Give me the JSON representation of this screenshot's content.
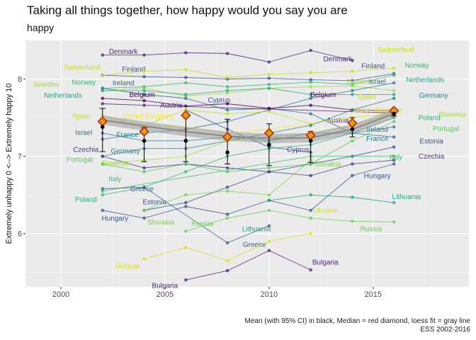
{
  "chart_data": {
    "type": "line",
    "title": "Taking all things together, how happy would you say you are",
    "subtitle": "happy",
    "xlabel": "",
    "ylabel": "Extremely unhappy 0 <--> Extremely happy 10",
    "xlim": [
      1998.3,
      2019.6
    ],
    "ylim": [
      5.31,
      8.5
    ],
    "xticks": [
      2000,
      2005,
      2010,
      2015
    ],
    "yticks": [
      6,
      7,
      8
    ],
    "caption_line1": "Mean (with 95% CI) in black, Median = red diamond, loess fit = gray line",
    "caption_line2": "ESS 2002-2016",
    "grid": true,
    "legend": "none",
    "series": [
      {
        "name": "Denmark",
        "color": "#472d7b",
        "x": [
          2002,
          2004,
          2006,
          2008,
          2010,
          2012,
          2014
        ],
        "y": [
          8.31,
          8.31,
          8.34,
          8.33,
          8.22,
          8.37,
          8.24
        ],
        "labels": [
          {
            "x": 2003,
            "y": 8.36,
            "ha": "middle"
          },
          {
            "x": 2013.3,
            "y": 8.26,
            "ha": "middle"
          }
        ]
      },
      {
        "name": "Finland",
        "color": "#3b528b",
        "x": [
          2002,
          2004,
          2006,
          2008,
          2010,
          2012,
          2014,
          2016
        ],
        "y": [
          8.05,
          8.03,
          8.02,
          8.0,
          8.01,
          7.99,
          7.98,
          8.07
        ],
        "labels": [
          {
            "x": 2003.5,
            "y": 8.13,
            "ha": "middle"
          },
          {
            "x": 2015,
            "y": 8.17,
            "ha": "middle"
          }
        ]
      },
      {
        "name": "Switzerland",
        "color": "#c8e020",
        "x": [
          2002,
          2004,
          2006,
          2008,
          2010,
          2012,
          2014,
          2016
        ],
        "y": [
          8.05,
          8.1,
          8.12,
          8.02,
          8.06,
          8.08,
          8.1,
          8.14
        ],
        "labels": [
          {
            "x": 2001,
            "y": 8.15,
            "ha": "middle"
          },
          {
            "x": 2016.1,
            "y": 8.38,
            "ha": "middle"
          }
        ]
      },
      {
        "name": "Norway",
        "color": "#35b779",
        "x": [
          2002,
          2004,
          2006,
          2008,
          2010,
          2012,
          2014,
          2016
        ],
        "y": [
          7.88,
          7.9,
          7.95,
          7.9,
          7.93,
          7.96,
          7.93,
          8.05
        ],
        "labels": [
          {
            "x": 2001.1,
            "y": 7.96,
            "ha": "middle"
          },
          {
            "x": 2017.1,
            "y": 8.18,
            "ha": "middle"
          }
        ]
      },
      {
        "name": "Sweden",
        "color": "#a0da39",
        "x": [
          2002,
          2004,
          2006,
          2008,
          2010,
          2012,
          2014,
          2016
        ],
        "y": [
          7.85,
          7.88,
          7.78,
          7.82,
          7.88,
          7.9,
          7.91,
          7.85
        ],
        "labels": [
          {
            "x": 1999.3,
            "y": 7.93,
            "ha": "middle"
          },
          {
            "x": 2014.3,
            "y": 7.97,
            "ha": "middle"
          }
        ]
      },
      {
        "name": "Ireland",
        "color": "#31688e",
        "x": [
          2002,
          2004,
          2006,
          2008,
          2010,
          2012,
          2014,
          2016
        ],
        "y": [
          7.88,
          7.8,
          7.75,
          7.6,
          7.62,
          7.55,
          7.3,
          7.25
        ],
        "labels": [
          {
            "x": 2003,
            "y": 7.95,
            "ha": "middle"
          },
          {
            "x": 2015.2,
            "y": 7.35,
            "ha": "middle"
          }
        ]
      },
      {
        "name": "Israel",
        "color": "#2a788e",
        "x": [
          2002,
          2004,
          2006,
          2008,
          2010,
          2012,
          2014,
          2016
        ],
        "y": [
          7.22,
          7.3,
          7.35,
          7.45,
          7.6,
          7.75,
          7.85,
          7.95
        ],
        "labels": [
          {
            "x": 2001.1,
            "y": 7.31,
            "ha": "middle"
          },
          {
            "x": 2015.2,
            "y": 7.97,
            "ha": "middle"
          }
        ]
      },
      {
        "name": "Netherlands",
        "color": "#22a884",
        "x": [
          2002,
          2004,
          2006,
          2008,
          2010,
          2012,
          2014,
          2016
        ],
        "y": [
          7.85,
          7.85,
          7.8,
          7.85,
          7.88,
          7.8,
          7.8,
          7.8
        ],
        "labels": [
          {
            "x": 2000.1,
            "y": 7.79,
            "ha": "middle"
          },
          {
            "x": 2017.5,
            "y": 7.99,
            "ha": "middle"
          }
        ]
      },
      {
        "name": "Belgium",
        "color": "#440154",
        "x": [
          2002,
          2004,
          2006,
          2008,
          2010,
          2012,
          2014,
          2016
        ],
        "y": [
          7.75,
          7.72,
          7.65,
          7.68,
          7.62,
          7.66,
          7.6,
          7.59
        ],
        "labels": [
          {
            "x": 2003.9,
            "y": 7.8,
            "ha": "middle"
          },
          {
            "x": 2012.6,
            "y": 7.8,
            "ha": "middle"
          }
        ]
      },
      {
        "name": "Austria",
        "color": "#482878",
        "x": [
          2002,
          2004,
          2016
        ],
        "y": [
          7.68,
          7.66,
          7.56
        ],
        "labels": [
          {
            "x": 2005.3,
            "y": 7.66,
            "ha": "middle"
          },
          {
            "x": 2013.3,
            "y": 7.47,
            "ha": "middle"
          }
        ]
      },
      {
        "name": "Cyprus",
        "color": "#3e4a89",
        "x": [
          2006,
          2008,
          2010,
          2012
        ],
        "y": [
          7.6,
          7.35,
          7.12,
          7.05
        ],
        "labels": [
          {
            "x": 2007.6,
            "y": 7.73,
            "ha": "middle"
          },
          {
            "x": 2011.4,
            "y": 7.09,
            "ha": "middle"
          }
        ]
      },
      {
        "name": "Spain",
        "color": "#bddf26",
        "x": [
          2002,
          2004,
          2006,
          2008,
          2010,
          2012,
          2014,
          2016
        ],
        "y": [
          7.52,
          7.4,
          7.6,
          7.55,
          7.58,
          7.42,
          7.5,
          7.55
        ],
        "labels": [
          {
            "x": 2001,
            "y": 7.52,
            "ha": "middle"
          },
          {
            "x": 2014.7,
            "y": 7.77,
            "ha": "middle"
          }
        ]
      },
      {
        "name": "United Kingdom",
        "color": "#fde725",
        "x": [
          2002,
          2004,
          2006,
          2008,
          2010,
          2012,
          2014,
          2016
        ],
        "y": [
          7.45,
          7.4,
          7.38,
          7.3,
          7.35,
          7.42,
          7.5,
          7.55
        ],
        "labels": [
          {
            "x": 2004.2,
            "y": 7.52,
            "ha": "middle"
          },
          {
            "x": 2015.2,
            "y": 7.6,
            "ha": "middle"
          }
        ]
      },
      {
        "name": "Germany",
        "color": "#26828e",
        "x": [
          2002,
          2004,
          2006,
          2008,
          2010,
          2012,
          2014,
          2016
        ],
        "y": [
          7.0,
          7.1,
          7.1,
          7.2,
          7.3,
          7.4,
          7.6,
          7.75
        ],
        "labels": [
          {
            "x": 2003.1,
            "y": 7.07,
            "ha": "middle"
          },
          {
            "x": 2017.9,
            "y": 7.79,
            "ha": "middle"
          }
        ]
      },
      {
        "name": "Czechia",
        "color": "#443983",
        "x": [
          2002,
          2004,
          2006,
          2008,
          2010,
          2012,
          2014,
          2016
        ],
        "y": [
          7.0,
          6.85,
          6.9,
          6.85,
          6.8,
          6.75,
          6.9,
          6.95
        ],
        "labels": [
          {
            "x": 2001.2,
            "y": 7.09,
            "ha": "middle"
          },
          {
            "x": 2017.8,
            "y": 7.0,
            "ha": "middle"
          }
        ]
      },
      {
        "name": "France",
        "color": "#277f8e",
        "x": [
          2002,
          2004,
          2006,
          2008,
          2010,
          2012,
          2014,
          2016
        ],
        "y": [
          7.3,
          7.2,
          7.2,
          7.25,
          7.2,
          7.3,
          7.3,
          7.38
        ],
        "labels": [
          {
            "x": 2003.2,
            "y": 7.28,
            "ha": "middle"
          },
          {
            "x": 2015.2,
            "y": 7.23,
            "ha": "middle"
          }
        ]
      },
      {
        "name": "Estonia",
        "color": "#3b528b",
        "x": [
          2004,
          2006,
          2008,
          2010,
          2012,
          2014,
          2016
        ],
        "y": [
          6.3,
          6.4,
          6.6,
          6.8,
          6.9,
          7.0,
          7.12
        ],
        "labels": [
          {
            "x": 2004.5,
            "y": 6.41,
            "ha": "middle"
          },
          {
            "x": 2017.8,
            "y": 7.2,
            "ha": "middle"
          }
        ]
      },
      {
        "name": "Slovenia",
        "color": "#a8db34",
        "x": [
          2002,
          2004,
          2006,
          2008,
          2010,
          2012,
          2014,
          2016
        ],
        "y": [
          6.9,
          6.95,
          7.0,
          7.2,
          7.25,
          7.3,
          7.4,
          7.55
        ],
        "labels": [
          {
            "x": 2002.6,
            "y": 6.91,
            "ha": "middle"
          },
          {
            "x": 2018.8,
            "y": 7.54,
            "ha": "middle"
          }
        ]
      },
      {
        "name": "Portugal",
        "color": "#5ec962",
        "x": [
          2002,
          2004,
          2006,
          2008,
          2010,
          2012,
          2014,
          2016
        ],
        "y": [
          6.9,
          6.8,
          6.9,
          6.8,
          6.85,
          6.9,
          7.2,
          7.45
        ],
        "labels": [
          {
            "x": 2000.9,
            "y": 6.96,
            "ha": "middle"
          },
          {
            "x": 2018.5,
            "y": 7.36,
            "ha": "middle"
          }
        ]
      },
      {
        "name": "Poland",
        "color": "#2db27d",
        "x": [
          2002,
          2004,
          2006,
          2008,
          2010,
          2012,
          2014,
          2016
        ],
        "y": [
          6.5,
          6.6,
          6.8,
          7.0,
          7.1,
          7.15,
          7.3,
          7.5
        ],
        "labels": [
          {
            "x": 2001.2,
            "y": 6.44,
            "ha": "middle"
          },
          {
            "x": 2017.7,
            "y": 7.5,
            "ha": "middle"
          }
        ]
      },
      {
        "name": "Italy",
        "color": "#3fbc73",
        "x": [
          2002,
          2012,
          2016
        ],
        "y": [
          6.55,
          7.0,
          7.0
        ],
        "labels": [
          {
            "x": 2002.6,
            "y": 6.71,
            "ha": "middle"
          },
          {
            "x": 2016.1,
            "y": 6.99,
            "ha": "middle"
          }
        ]
      },
      {
        "name": "Greece",
        "color": "#33638d",
        "x": [
          2002,
          2004,
          2008,
          2010
        ],
        "y": [
          6.58,
          6.6,
          5.88,
          6.1
        ],
        "labels": [
          {
            "x": 2003.9,
            "y": 6.58,
            "ha": "middle"
          },
          {
            "x": 2009.3,
            "y": 5.86,
            "ha": "middle"
          }
        ]
      },
      {
        "name": "Hungary",
        "color": "#39568c",
        "x": [
          2002,
          2004,
          2006,
          2008,
          2010,
          2012,
          2014,
          2016
        ],
        "y": [
          6.3,
          6.2,
          6.35,
          6.25,
          6.43,
          6.3,
          6.75,
          6.9
        ],
        "labels": [
          {
            "x": 2002.6,
            "y": 6.2,
            "ha": "middle"
          },
          {
            "x": 2015.2,
            "y": 6.75,
            "ha": "middle"
          }
        ]
      },
      {
        "name": "Slovakia",
        "color": "#7ad151",
        "x": [
          2004,
          2006,
          2008,
          2010,
          2012
        ],
        "y": [
          6.3,
          6.5,
          6.55,
          6.5,
          6.95
        ],
        "labels": [
          {
            "x": 2004.8,
            "y": 6.15,
            "ha": "middle"
          },
          {
            "x": 2012.8,
            "y": 6.9,
            "ha": "middle"
          }
        ]
      },
      {
        "name": "Lithuania",
        "color": "#22a884",
        "x": [
          2010,
          2012,
          2014,
          2016
        ],
        "y": [
          6.43,
          6.5,
          6.47,
          6.4
        ],
        "labels": [
          {
            "x": 2009.4,
            "y": 6.06,
            "ha": "middle"
          },
          {
            "x": 2016.6,
            "y": 6.48,
            "ha": "middle"
          }
        ]
      },
      {
        "name": "Russia",
        "color": "#6ccd5a",
        "x": [
          2006,
          2008,
          2010,
          2012,
          2014,
          2016
        ],
        "y": [
          6.03,
          6.2,
          6.3,
          6.2,
          6.16,
          6.15
        ],
        "labels": [
          {
            "x": 2006.8,
            "y": 6.13,
            "ha": "middle"
          },
          {
            "x": 2014.9,
            "y": 6.06,
            "ha": "middle"
          }
        ]
      },
      {
        "name": "Ukraine",
        "color": "#d8e219",
        "x": [
          2004,
          2006,
          2008,
          2010,
          2012
        ],
        "y": [
          5.67,
          5.82,
          5.65,
          5.9,
          6.0
        ],
        "labels": [
          {
            "x": 2003.2,
            "y": 5.58,
            "ha": "middle"
          },
          {
            "x": 2012.7,
            "y": 6.3,
            "ha": "middle"
          }
        ]
      },
      {
        "name": "Bulgaria",
        "color": "#482677",
        "x": [
          2006,
          2008,
          2010,
          2012
        ],
        "y": [
          5.4,
          5.52,
          5.78,
          5.53
        ],
        "labels": [
          {
            "x": 2005.0,
            "y": 5.33,
            "ha": "middle"
          },
          {
            "x": 2012.7,
            "y": 5.63,
            "ha": "middle"
          }
        ]
      }
    ],
    "summary": {
      "years": [
        2002,
        2004,
        2006,
        2008,
        2010,
        2012,
        2014,
        2016
      ],
      "mean": [
        7.38,
        7.2,
        7.2,
        7.05,
        7.15,
        7.2,
        7.35,
        7.55
      ],
      "ci_low": [
        7.06,
        6.93,
        6.93,
        6.9,
        6.88,
        6.92,
        7.25,
        7.52
      ],
      "ci_high": [
        7.62,
        7.37,
        7.56,
        7.48,
        7.42,
        7.32,
        7.5,
        7.6
      ],
      "median": [
        7.45,
        7.32,
        7.53,
        7.25,
        7.3,
        7.27,
        7.43,
        7.59
      ],
      "loess": [
        7.47,
        7.39,
        7.32,
        7.26,
        7.23,
        7.24,
        7.35,
        7.55
      ]
    }
  }
}
